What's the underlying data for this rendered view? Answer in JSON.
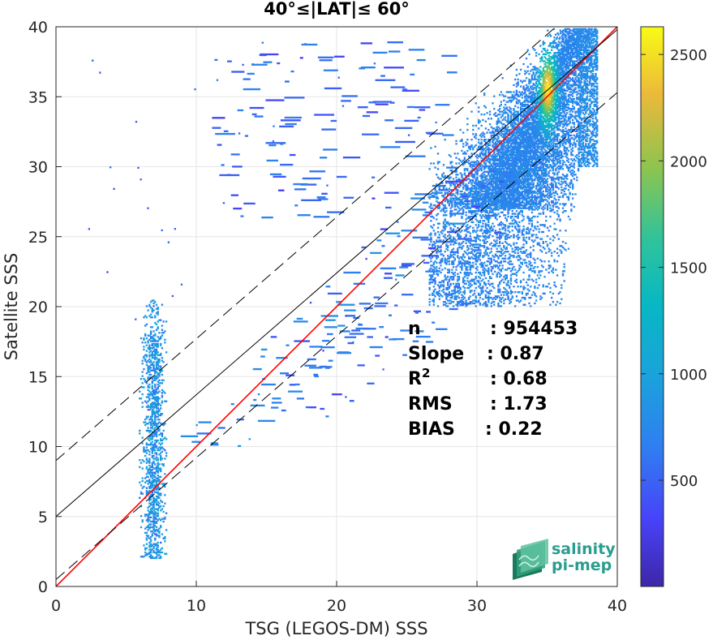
{
  "chart_data": {
    "type": "heatmap",
    "title": "40°≤|LAT|≤ 60°",
    "xlabel": "TSG (LEGOS-DM) SSS",
    "ylabel": "Satellite SSS",
    "xlim": [
      0,
      40
    ],
    "ylim": [
      0,
      40
    ],
    "xticks": [
      "0",
      "10",
      "20",
      "30",
      "40"
    ],
    "yticks": [
      "0",
      "5",
      "10",
      "15",
      "20",
      "25",
      "30",
      "35",
      "40"
    ],
    "grid": true,
    "colorbar": {
      "range": [
        1,
        2630
      ],
      "ticks": [
        "500",
        "1000",
        "1500",
        "2000",
        "2500"
      ],
      "colormap": "parula"
    },
    "lines": [
      {
        "name": "identity",
        "slope": 1.0,
        "intercept": 0.0,
        "color": "#ff0000",
        "style": "solid"
      },
      {
        "name": "fit",
        "slope": 0.87,
        "intercept": 5.0,
        "color": "#000000",
        "style": "solid"
      },
      {
        "name": "fit-plus",
        "slope": 0.87,
        "intercept": 9.0,
        "color": "#000000",
        "style": "dashed"
      },
      {
        "name": "fit-minus",
        "slope": 0.87,
        "intercept": 0.5,
        "color": "#000000",
        "style": "dashed"
      }
    ],
    "stats": [
      {
        "label": "n",
        "value": ": 954453"
      },
      {
        "label": "Slope",
        "value": ": 0.87"
      },
      {
        "label": "R",
        "sup": "2",
        "value": ": 0.68"
      },
      {
        "label": "RMS",
        "value": ": 1.73"
      },
      {
        "label": "BIAS",
        "value": ": 0.22"
      }
    ],
    "density_regions": [
      {
        "name": "main-cloud",
        "x_range": [
          27,
          38
        ],
        "y_range": [
          20,
          40
        ],
        "peak": [
          35,
          35.5
        ],
        "peak_count": 2630
      },
      {
        "name": "diagonal-band",
        "x_range": [
          10,
          30
        ],
        "y_range": [
          10,
          30
        ],
        "peak_count": 150
      },
      {
        "name": "low-salinity-column",
        "x_range": [
          5.8,
          7.8
        ],
        "y_range": [
          2,
          20.5
        ],
        "peak_count": 200
      },
      {
        "name": "upper-scatter",
        "x_range": [
          11,
          27
        ],
        "y_range": [
          26,
          39
        ],
        "peak_count": 60
      }
    ]
  },
  "logo": {
    "line1": "salinity",
    "line2": "pi-mep"
  },
  "colors": {
    "background": "#ffffff",
    "axis": "#262626",
    "grid": "#e6e6e6",
    "identity": "#ff0000",
    "fit": "#000000"
  }
}
